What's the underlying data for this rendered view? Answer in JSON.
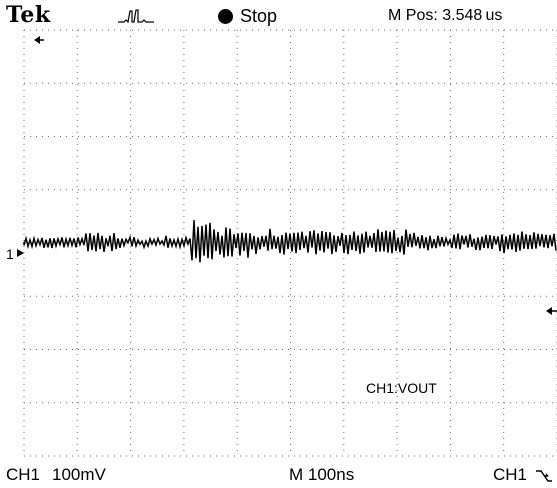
{
  "header": {
    "brand": "Tek",
    "trigger_icon": "trigger-pulse-icon",
    "state": "Stop",
    "m_pos": "M Pos: 3.548 us"
  },
  "screen": {
    "channel_label": "CH1:VOUT",
    "ch1_marker": "1",
    "grid": "dotted"
  },
  "footer": {
    "channel": "CH1",
    "scale": "100mV",
    "timebase": "M 100ns",
    "trigger_source": "CH1",
    "trigger_slope_icon": "falling-edge-icon"
  },
  "colors": {
    "background": "#ffffff",
    "trace": "#000000",
    "grid": "#6e6e6e"
  }
}
